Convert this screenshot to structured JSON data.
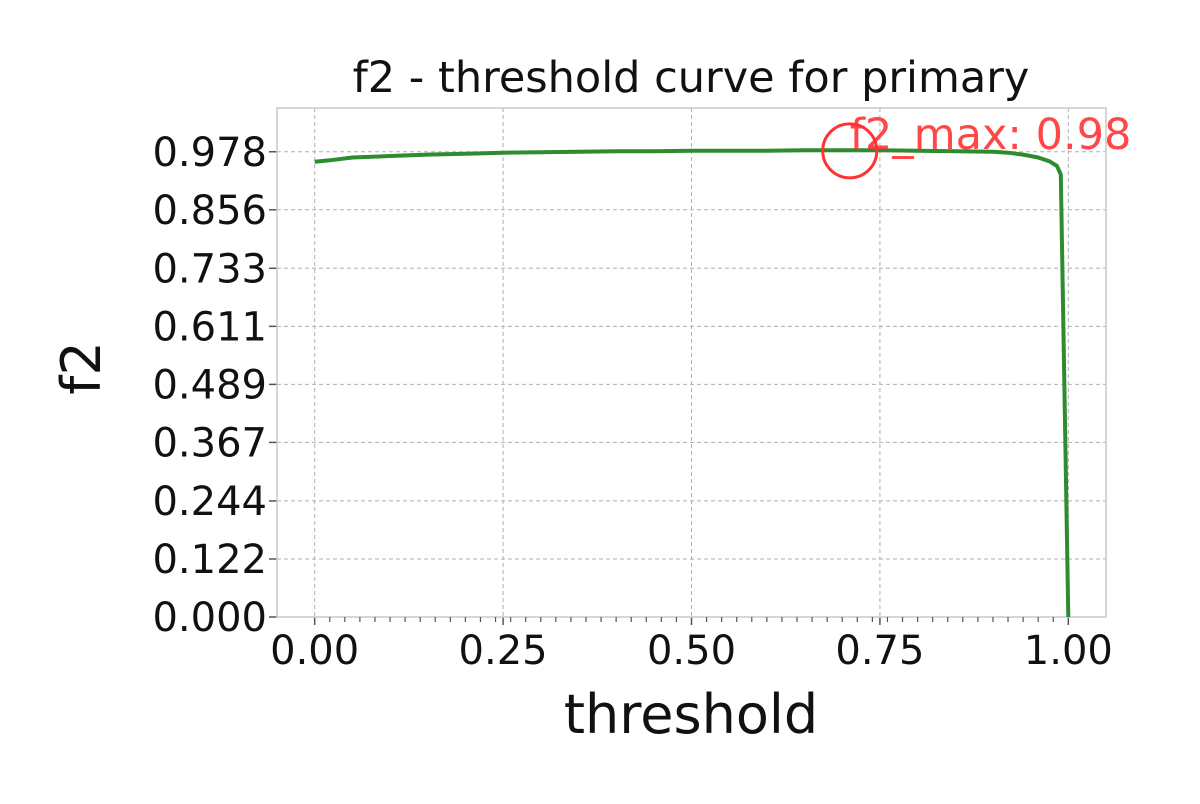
{
  "chart_data": {
    "type": "line",
    "title": "f2 - threshold curve for primary",
    "xlabel": "threshold",
    "ylabel": "f2",
    "xlim": [
      -0.05,
      1.05
    ],
    "ylim": [
      0.0,
      1.07
    ],
    "grid": true,
    "xticks": [
      0.0,
      0.25,
      0.5,
      0.75,
      1.0
    ],
    "xtick_labels": [
      "0.00",
      "0.25",
      "0.50",
      "0.75",
      "1.00"
    ],
    "yticks": [
      0.0,
      0.122,
      0.244,
      0.367,
      0.489,
      0.611,
      0.733,
      0.856,
      0.978
    ],
    "ytick_labels": [
      "0.000",
      "0.122",
      "0.244",
      "0.367",
      "0.489",
      "0.611",
      "0.733",
      "0.856",
      "0.978"
    ],
    "series": [
      {
        "color": "#2e8b2e",
        "x": [
          0.0,
          0.02,
          0.05,
          0.1,
          0.15,
          0.2,
          0.25,
          0.3,
          0.35,
          0.4,
          0.45,
          0.5,
          0.55,
          0.6,
          0.65,
          0.7,
          0.75,
          0.8,
          0.85,
          0.9,
          0.92,
          0.94,
          0.96,
          0.975,
          0.985,
          0.99,
          1.0
        ],
        "y": [
          0.957,
          0.96,
          0.966,
          0.969,
          0.972,
          0.974,
          0.976,
          0.977,
          0.978,
          0.979,
          0.979,
          0.98,
          0.98,
          0.98,
          0.981,
          0.981,
          0.981,
          0.98,
          0.979,
          0.978,
          0.976,
          0.972,
          0.966,
          0.958,
          0.948,
          0.93,
          0.0
        ]
      }
    ],
    "annotation": {
      "text": "f2_max: 0.98",
      "x": 0.71,
      "y": 0.98,
      "color": "#ff3333"
    }
  }
}
